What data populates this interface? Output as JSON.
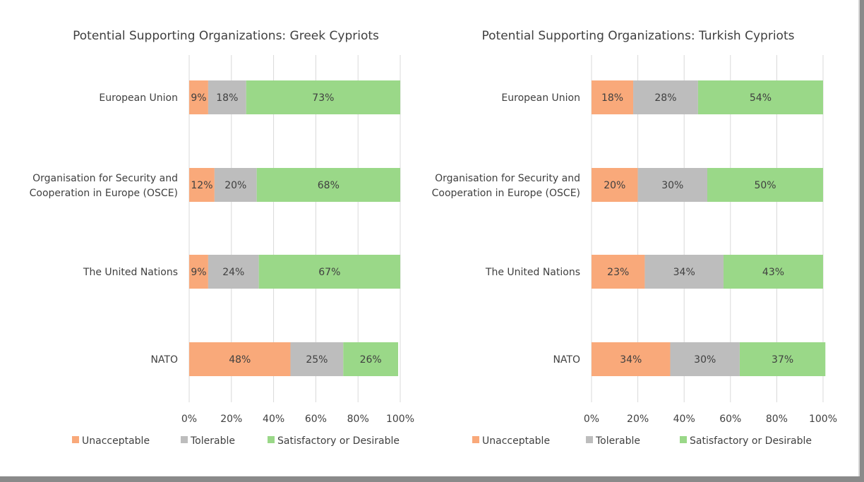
{
  "legend": {
    "items": [
      {
        "label": "Unacceptable",
        "color": "#F9A97A"
      },
      {
        "label": "Tolerable",
        "color": "#BDBDBD"
      },
      {
        "label": "Satisfactory or Desirable",
        "color": "#9AD888"
      }
    ]
  },
  "chart_data": [
    {
      "type": "bar",
      "orientation": "horizontal",
      "stacked": true,
      "title": "Potential Supporting Organizations: Greek Cypriots",
      "categories": [
        "European Union",
        "Organisation for Security and Cooperation in Europe (OSCE)",
        "The United Nations",
        "NATO"
      ],
      "series": [
        {
          "name": "Unacceptable",
          "values": [
            9,
            12,
            9,
            48
          ],
          "labels": [
            "9%",
            "12%",
            "9%",
            "48%"
          ]
        },
        {
          "name": "Tolerable",
          "values": [
            18,
            20,
            24,
            25
          ],
          "labels": [
            "18%",
            "20%",
            "24%",
            "25%"
          ]
        },
        {
          "name": "Satisfactory or Desirable",
          "values": [
            73,
            68,
            67,
            26
          ],
          "labels": [
            "73%",
            "68%",
            "67%",
            "26%"
          ]
        }
      ],
      "xticks": [
        "0%",
        "20%",
        "40%",
        "60%",
        "80%",
        "100%"
      ],
      "xlim": [
        0,
        100
      ],
      "grid": true,
      "legend_position": "bottom"
    },
    {
      "type": "bar",
      "orientation": "horizontal",
      "stacked": true,
      "title": "Potential Supporting Organizations: Turkish Cypriots",
      "categories": [
        "European Union",
        "Organisation for Security and Cooperation in Europe (OSCE)",
        "The United Nations",
        "NATO"
      ],
      "series": [
        {
          "name": "Unacceptable",
          "values": [
            18,
            20,
            23,
            34
          ],
          "labels": [
            "18%",
            "20%",
            "23%",
            "34%"
          ]
        },
        {
          "name": "Tolerable",
          "values": [
            28,
            30,
            34,
            30
          ],
          "labels": [
            "28%",
            "30%",
            "34%",
            "30%"
          ]
        },
        {
          "name": "Satisfactory or Desirable",
          "values": [
            54,
            50,
            43,
            37
          ],
          "labels": [
            "54%",
            "50%",
            "43%",
            "37%"
          ]
        }
      ],
      "xticks": [
        "0%",
        "20%",
        "40%",
        "60%",
        "80%",
        "100%"
      ],
      "xlim": [
        0,
        100
      ],
      "grid": true,
      "legend_position": "bottom"
    }
  ]
}
